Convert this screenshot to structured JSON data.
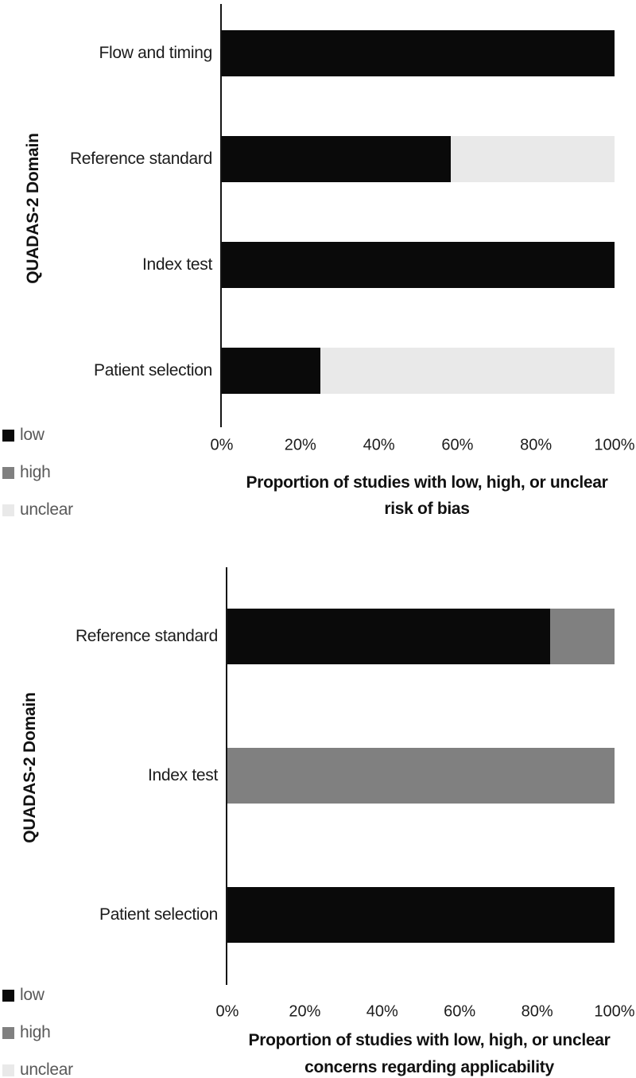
{
  "chart_data": [
    {
      "type": "bar",
      "orientation": "horizontal",
      "stacked": true,
      "ylabel": "QUADAS-2 Domain",
      "xlabel_line1": "Proportion of studies with low, high, or unclear",
      "xlabel_line2": "risk of bias",
      "categories": [
        "Flow and timing",
        "Reference standard",
        "Index test",
        "Patient selection"
      ],
      "series": [
        {
          "name": "low",
          "color": "#0a0a0a",
          "values": [
            100,
            58.3,
            100,
            25
          ]
        },
        {
          "name": "high",
          "color": "#808080",
          "values": [
            0,
            0,
            0,
            0
          ]
        },
        {
          "name": "unclear",
          "color": "#e9e9e9",
          "values": [
            0,
            41.7,
            0,
            75
          ]
        }
      ],
      "x_ticks": [
        "0%",
        "20%",
        "40%",
        "60%",
        "80%",
        "100%"
      ],
      "xlim": [
        0,
        100
      ],
      "grid": false,
      "legend_position": "bottom-left",
      "legend": [
        {
          "label": "low",
          "color": "#0a0a0a"
        },
        {
          "label": "high",
          "color": "#808080"
        },
        {
          "label": "unclear",
          "color": "#e9e9e9"
        }
      ]
    },
    {
      "type": "bar",
      "orientation": "horizontal",
      "stacked": true,
      "ylabel": "QUADAS-2 Domain",
      "xlabel_line1": "Proportion of studies with low, high, or unclear",
      "xlabel_line2": "concerns regarding applicability",
      "categories": [
        "Reference standard",
        "Index test",
        "Patient selection"
      ],
      "series": [
        {
          "name": "low",
          "color": "#0a0a0a",
          "values": [
            83.3,
            0,
            100
          ]
        },
        {
          "name": "high",
          "color": "#808080",
          "values": [
            16.7,
            100,
            0
          ]
        },
        {
          "name": "unclear",
          "color": "#e9e9e9",
          "values": [
            0,
            0,
            0
          ]
        }
      ],
      "x_ticks": [
        "0%",
        "20%",
        "40%",
        "60%",
        "80%",
        "100%"
      ],
      "xlim": [
        0,
        100
      ],
      "grid": false,
      "legend_position": "bottom-left",
      "legend": [
        {
          "label": "low",
          "color": "#0a0a0a"
        },
        {
          "label": "high",
          "color": "#808080"
        },
        {
          "label": "unclear",
          "color": "#e9e9e9"
        }
      ]
    }
  ]
}
